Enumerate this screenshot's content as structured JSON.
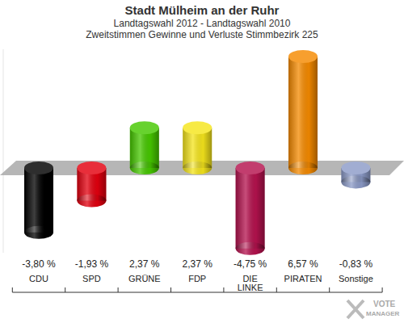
{
  "chart_data": {
    "type": "bar",
    "title": "Stadt Mülheim an der Ruhr",
    "subtitle": [
      "Landtagswahl 2012 - Landtagswahl 2010",
      "Zweitstimmen Gewinne und Verluste Stimmbezirk 225"
    ],
    "categories": [
      "CDU",
      "SPD",
      "GRÜNE",
      "FDP",
      "DIE LINKE",
      "PIRATEN",
      "Sonstige"
    ],
    "values": [
      -3.8,
      -1.93,
      2.37,
      2.37,
      -4.75,
      6.57,
      -0.83
    ],
    "value_labels": [
      "-3,80 %",
      "-1,93 %",
      "2,37 %",
      "2,37 %",
      "-4,75 %",
      "6,57 %",
      "-0,83 %"
    ],
    "colors": [
      "#000000",
      "#e3000f",
      "#46c800",
      "#f5e51c",
      "#b5124e",
      "#f58a00",
      "#8c9bc8"
    ],
    "ylim": [
      -5,
      7
    ],
    "data_labels": true,
    "tick_labels": false,
    "grid": false,
    "annotations": [
      "VOTE",
      "MANAGER"
    ]
  }
}
